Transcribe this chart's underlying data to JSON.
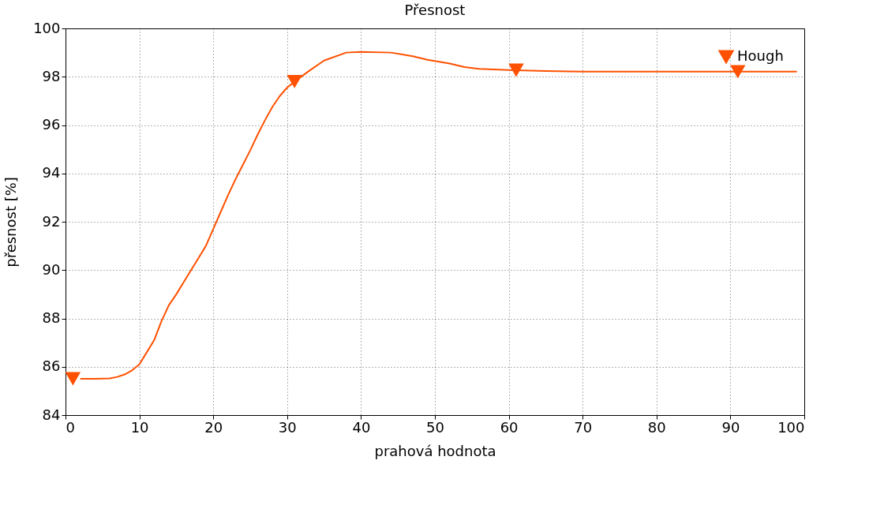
{
  "chart_data": {
    "type": "line",
    "title": "Přesnost",
    "xlabel": "prahová hodnota",
    "ylabel": "přesnost [%]",
    "xlim": [
      0,
      100
    ],
    "xticks": [
      0,
      10,
      20,
      30,
      40,
      50,
      60,
      70,
      80,
      90,
      100
    ],
    "ylim": [
      84,
      100
    ],
    "yticks": [
      84,
      86,
      88,
      90,
      92,
      94,
      96,
      98,
      100
    ],
    "grid": true,
    "legend": "top right",
    "line_style": "solid",
    "series": [
      {
        "name": "Hough",
        "color": "#ff5000",
        "marker": "none",
        "x": [
          2,
          4,
          6,
          7,
          8,
          9,
          10,
          11,
          12,
          13,
          14,
          15,
          16,
          17,
          18,
          19,
          20,
          21,
          22,
          23,
          24,
          25,
          26,
          27,
          28,
          29,
          30,
          31,
          33,
          35,
          38,
          40,
          44,
          47,
          49,
          52,
          54,
          56,
          60,
          65,
          70,
          99
        ],
        "values": [
          85.5,
          85.5,
          85.52,
          85.58,
          85.68,
          85.85,
          86.1,
          86.6,
          87.1,
          87.9,
          88.55,
          89.0,
          89.5,
          90.0,
          90.5,
          91.0,
          91.7,
          92.4,
          93.1,
          93.75,
          94.35,
          94.95,
          95.6,
          96.2,
          96.75,
          97.2,
          97.55,
          97.8,
          98.25,
          98.67,
          99.0,
          99.03,
          99.0,
          98.85,
          98.7,
          98.55,
          98.4,
          98.33,
          98.28,
          98.24,
          98.21,
          98.21
        ]
      },
      {
        "type": "scatter",
        "color": "#ff5000",
        "marker": "triangle",
        "x": [
          1,
          31,
          61,
          91
        ],
        "values": [
          85.5,
          97.8,
          98.27,
          98.21
        ]
      }
    ]
  }
}
